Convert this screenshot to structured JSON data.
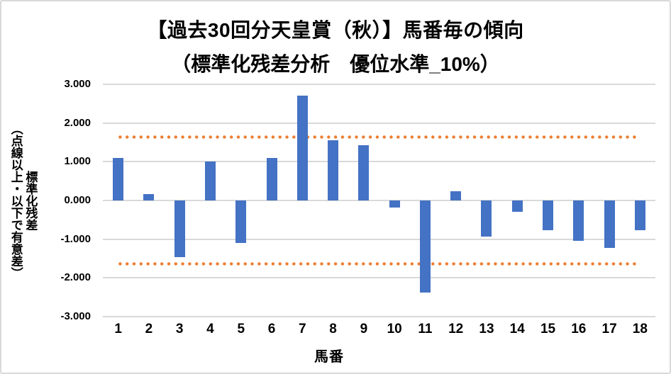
{
  "title": {
    "line1": "【過去30回分天皇賞（秋）】馬番毎の傾向",
    "line2": "（標準化残差分析　優位水準_10%）"
  },
  "axes": {
    "ylabel_lines": [
      "標準化残差",
      "（点線以上・以下で有意差）"
    ],
    "x_title": "馬番",
    "y_tick_labels": [
      "3.000",
      "2.000",
      "1.000",
      "0.000",
      "-1.000",
      "-2.000",
      "-3.000"
    ]
  },
  "chart_data": {
    "type": "bar",
    "title": "【過去30回分天皇賞（秋）】馬番毎の傾向",
    "subtitle": "（標準化残差分析　優位水準_10%）",
    "categories": [
      "1",
      "2",
      "3",
      "4",
      "5",
      "6",
      "7",
      "8",
      "9",
      "10",
      "11",
      "12",
      "13",
      "14",
      "15",
      "16",
      "17",
      "18"
    ],
    "values": [
      1.09,
      0.16,
      -1.47,
      1.01,
      -1.1,
      1.1,
      2.7,
      1.55,
      1.43,
      -0.18,
      -2.38,
      0.23,
      -0.93,
      -0.3,
      -0.77,
      -1.04,
      -1.22,
      -0.76
    ],
    "xlabel": "馬番",
    "ylabel": "標準化残差（点線以上・以下で有意差）",
    "ylim": [
      -3,
      3
    ],
    "y_tick_interval": 1,
    "grid": true,
    "legend": false,
    "significance_lines": {
      "values": [
        1.645,
        -1.645
      ],
      "style": "dotted",
      "color": "#ED7D31"
    },
    "bar_color": "#4472C4"
  },
  "colors": {
    "bar": "#4472C4",
    "significance_line": "#ED7D31",
    "gridline": "#D9D9D9",
    "frame_border": "#D9D9D9",
    "text": "#000000",
    "background": "#FFFFFF"
  }
}
